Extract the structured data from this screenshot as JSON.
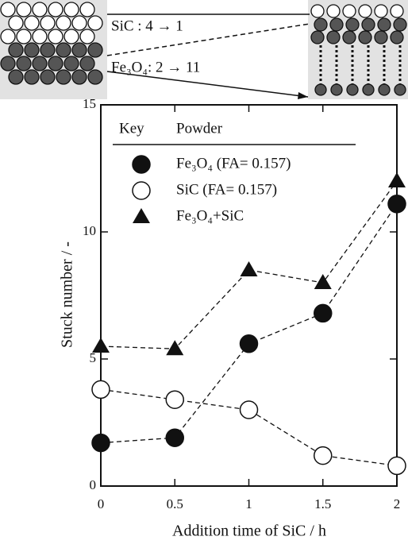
{
  "chart_data": {
    "type": "line",
    "annotations": [
      "SiC   : 4 → 1",
      "Fe₃O₄: 2 → 11"
    ],
    "legend_header": [
      "Key",
      "Powder"
    ],
    "x_label": "Addition time of SiC / h",
    "y_label": "Stuck number / -",
    "x": [
      0,
      0.5,
      1,
      1.5,
      2
    ],
    "series": [
      {
        "name": "Fe₃O₄ (FA= 0.157)",
        "marker": "filled-circle",
        "color": "#111111",
        "values": [
          1.7,
          1.9,
          5.6,
          6.8,
          11.1
        ]
      },
      {
        "name": "SiC (FA= 0.157)",
        "marker": "open-circle",
        "color": "#111111",
        "values": [
          3.8,
          3.4,
          3.0,
          1.2,
          0.8
        ]
      },
      {
        "name": "Fe₃O₄+SiC",
        "marker": "triangle",
        "color": "#111111",
        "values": [
          5.5,
          5.4,
          8.5,
          8.0,
          12.0
        ]
      }
    ],
    "xlim": [
      0,
      2
    ],
    "ylim": [
      0,
      15
    ],
    "xticks": [
      0,
      0.5,
      1,
      1.5,
      2
    ],
    "yticks": [
      0,
      5,
      10,
      15
    ],
    "grid": false,
    "line_style": "dashed"
  }
}
